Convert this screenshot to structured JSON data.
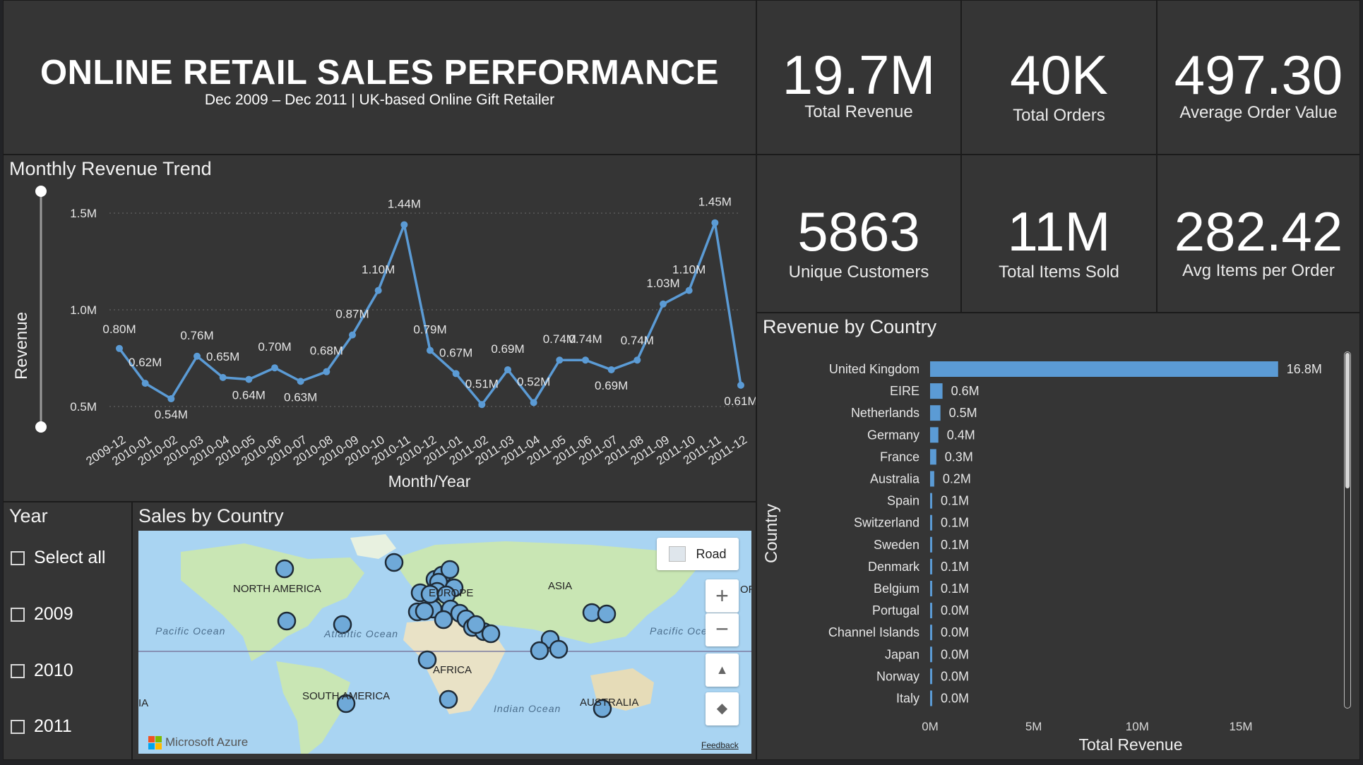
{
  "header": {
    "title": "ONLINE RETAIL SALES PERFORMANCE",
    "subtitle": "Dec 2009 – Dec 2011 | UK-based Online Gift Retailer"
  },
  "kpis": [
    {
      "value": "19.7M",
      "label": "Total Revenue"
    },
    {
      "value": "40K",
      "label": "Total Orders"
    },
    {
      "value": "497.30",
      "label": "Average Order Value"
    },
    {
      "value": "5863",
      "label": "Unique Customers"
    },
    {
      "value": "11M",
      "label": "Total Items Sold"
    },
    {
      "value": "282.42",
      "label": "Avg Items per Order"
    }
  ],
  "line_panel": {
    "title": "Monthly Revenue Trend"
  },
  "bar_panel": {
    "title": "Revenue by Country"
  },
  "slicer": {
    "title": "Year",
    "items": [
      "Select all",
      "2009",
      "2010",
      "2011"
    ]
  },
  "map_panel": {
    "title": "Sales by Country",
    "style_button": "Road",
    "labels": {
      "north_america": "NORTH AMERICA",
      "south_america": "SOUTH AMERICA",
      "europe": "EUROPE",
      "africa": "AFRICA",
      "asia": "ASIA",
      "australia": "AUSTRALIA",
      "pacific_left": "Pacific Ocean",
      "pacific_right": "Pacific Oce",
      "atlantic": "Atlantic Ocean",
      "indian": "Indian Ocean",
      "edge_left": "IA",
      "edge_right": "OR"
    },
    "attribution": "Microsoft Azure",
    "feedback": "Feedback",
    "accent": "#6fa9d8"
  },
  "colors": {
    "line": "#5b9bd5",
    "bar": "#5b9bd5",
    "panel": "#353535"
  },
  "chart_data": [
    {
      "type": "line",
      "title": "Monthly Revenue Trend",
      "xlabel": "Month/Year",
      "ylabel": "Revenue",
      "categories": [
        "2009-12",
        "2010-01",
        "2010-02",
        "2010-03",
        "2010-04",
        "2010-05",
        "2010-06",
        "2010-07",
        "2010-08",
        "2010-09",
        "2010-10",
        "2010-11",
        "2010-12",
        "2011-01",
        "2011-02",
        "2011-03",
        "2011-04",
        "2011-05",
        "2011-06",
        "2011-07",
        "2011-08",
        "2011-09",
        "2011-10",
        "2011-11",
        "2011-12"
      ],
      "values": [
        0.8,
        0.62,
        0.54,
        0.76,
        0.65,
        0.64,
        0.7,
        0.63,
        0.68,
        0.87,
        1.1,
        1.44,
        0.79,
        0.67,
        0.51,
        0.69,
        0.52,
        0.74,
        0.74,
        0.69,
        0.74,
        1.03,
        1.1,
        1.45,
        0.61
      ],
      "labels": [
        "0.80M",
        "0.62M",
        "0.54M",
        "0.76M",
        "0.65M",
        "0.64M",
        "0.70M",
        "0.63M",
        "0.68M",
        "0.87M",
        "1.10M",
        "1.44M",
        "0.79M",
        "0.67M",
        "0.51M",
        "0.69M",
        "0.52M",
        "0.74M",
        "0.74M",
        "0.69M",
        "0.74M",
        "1.03M",
        "1.10M",
        "1.45M",
        "0.61M"
      ],
      "yticks": [
        "0.5M",
        "1.0M",
        "1.5M"
      ],
      "ytick_values": [
        0.5,
        1.0,
        1.5
      ],
      "grid": true
    },
    {
      "type": "bar",
      "orientation": "horizontal",
      "title": "Revenue by Country",
      "xlabel": "Total Revenue",
      "ylabel": "Country",
      "categories": [
        "United Kingdom",
        "EIRE",
        "Netherlands",
        "Germany",
        "France",
        "Australia",
        "Spain",
        "Switzerland",
        "Sweden",
        "Denmark",
        "Belgium",
        "Portugal",
        "Channel Islands",
        "Japan",
        "Norway",
        "Italy"
      ],
      "values": [
        16.8,
        0.6,
        0.5,
        0.4,
        0.3,
        0.2,
        0.1,
        0.1,
        0.1,
        0.1,
        0.1,
        0.0,
        0.0,
        0.0,
        0.0,
        0.0
      ],
      "labels": [
        "16.8M",
        "0.6M",
        "0.5M",
        "0.4M",
        "0.3M",
        "0.2M",
        "0.1M",
        "0.1M",
        "0.1M",
        "0.1M",
        "0.1M",
        "0.0M",
        "0.0M",
        "0.0M",
        "0.0M",
        "0.0M"
      ],
      "xticks": [
        "0M",
        "5M",
        "10M",
        "15M"
      ],
      "xtick_values": [
        0,
        5,
        10,
        15
      ],
      "xlim": [
        0,
        20
      ]
    }
  ]
}
